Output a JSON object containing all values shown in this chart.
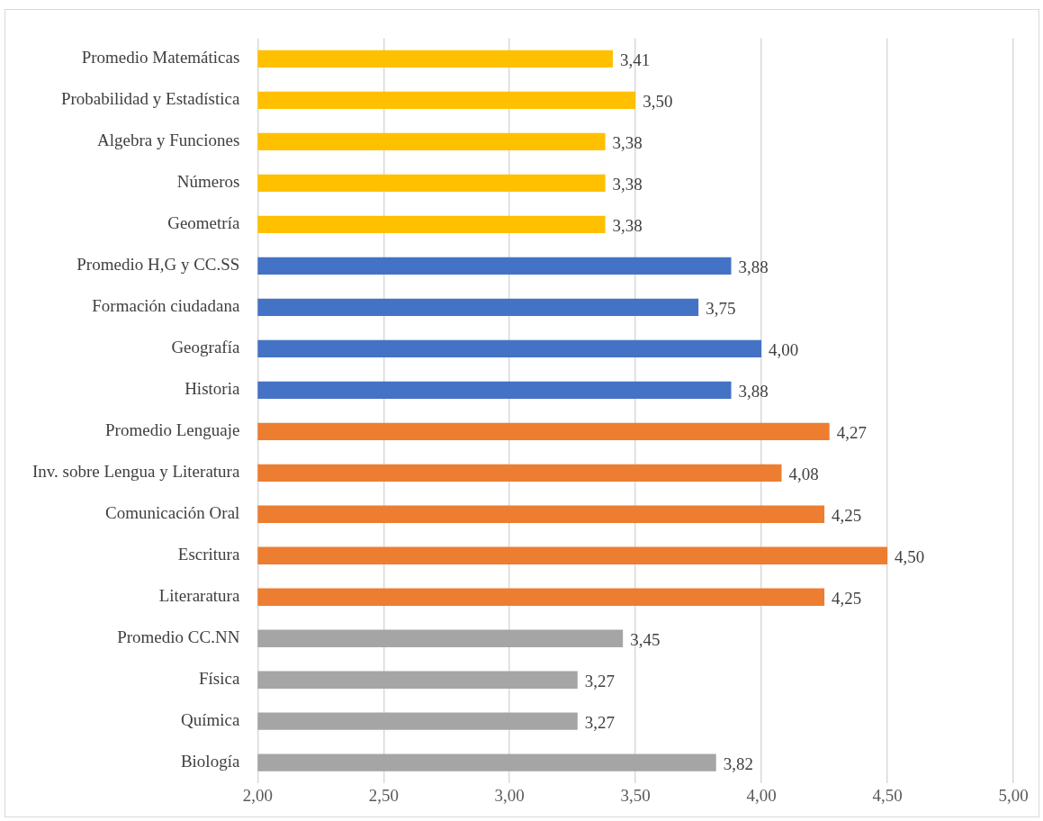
{
  "chart_data": {
    "type": "bar",
    "orientation": "horizontal",
    "categories": [
      "Promedio Matemáticas",
      "Probabilidad y Estadística",
      "Algebra y Funciones",
      "Números",
      "Geometría",
      "Promedio H,G y CC.SS",
      "Formación ciudadana",
      "Geografía",
      "Historia",
      "Promedio Lenguaje",
      "Inv. sobre Lengua y Literatura",
      "Comunicación Oral",
      "Escritura",
      "Literaratura",
      "Promedio CC.NN",
      "Física",
      "Química",
      "Biología"
    ],
    "values": [
      3.41,
      3.5,
      3.38,
      3.38,
      3.38,
      3.88,
      3.75,
      4.0,
      3.88,
      4.27,
      4.08,
      4.25,
      4.5,
      4.25,
      3.45,
      3.27,
      3.27,
      3.82
    ],
    "value_labels": [
      "3,41",
      "3,50",
      "3,38",
      "3,38",
      "3,38",
      "3,88",
      "3,75",
      "4,00",
      "3,88",
      "4,27",
      "4,08",
      "4,25",
      "4,50",
      "4,25",
      "3,45",
      "3,27",
      "3,27",
      "3,82"
    ],
    "colors": [
      "#ffc000",
      "#ffc000",
      "#ffc000",
      "#ffc000",
      "#ffc000",
      "#4472c4",
      "#4472c4",
      "#4472c4",
      "#4472c4",
      "#ed7d31",
      "#ed7d31",
      "#ed7d31",
      "#ed7d31",
      "#ed7d31",
      "#a5a5a5",
      "#a5a5a5",
      "#a5a5a5",
      "#a5a5a5"
    ],
    "xlim": [
      2,
      5
    ],
    "xticks": [
      {
        "value": 2,
        "label": "2,00"
      },
      {
        "value": 2.5,
        "label": "2,50"
      },
      {
        "value": 3,
        "label": "3,00"
      },
      {
        "value": 3.5,
        "label": "3,50"
      },
      {
        "value": 4,
        "label": "4,00"
      },
      {
        "value": 4.5,
        "label": "4,50"
      },
      {
        "value": 5,
        "label": "5,00"
      }
    ],
    "grid": "x",
    "legend": false
  }
}
